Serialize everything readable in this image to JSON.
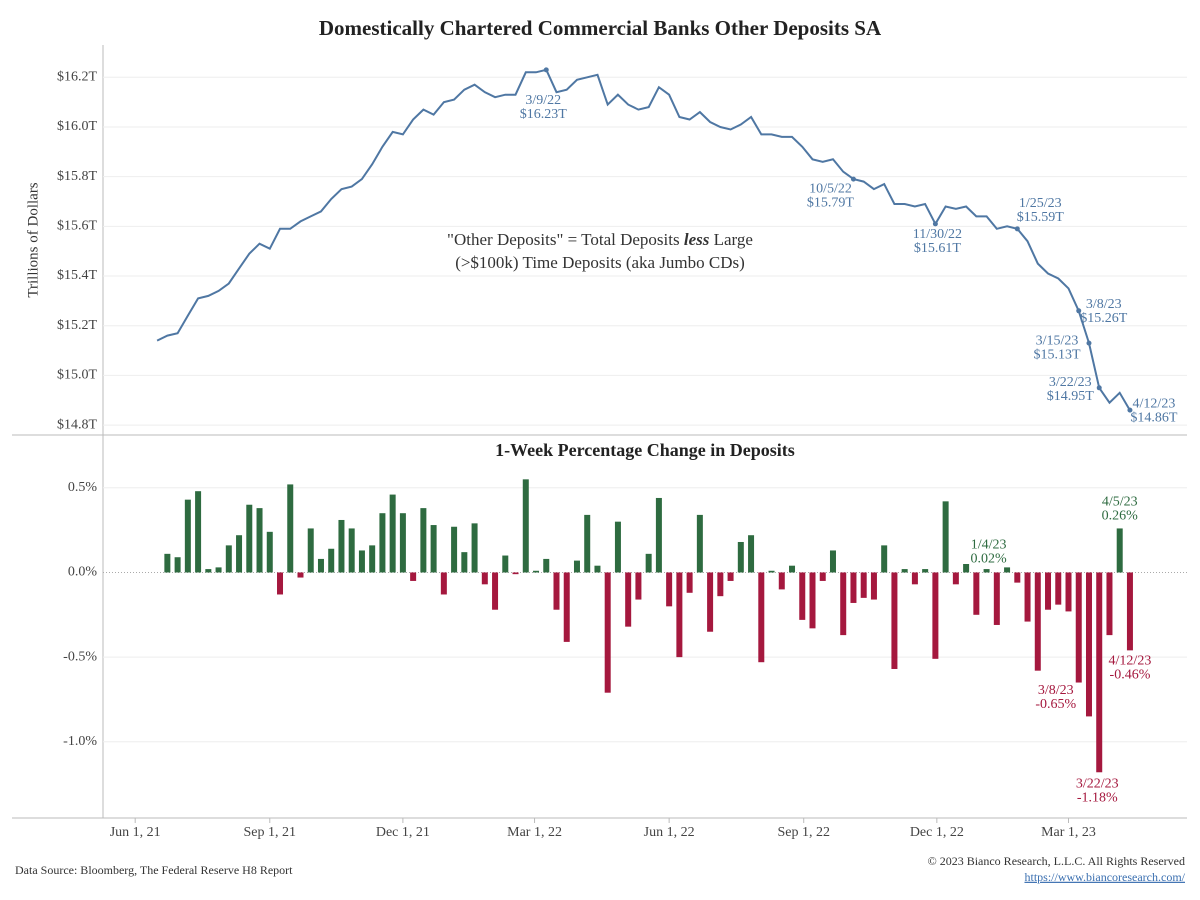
{
  "chart_data": [
    {
      "type": "line",
      "title": "Domestically Chartered Commercial Banks Other Deposits SA",
      "y_label": "Trillions of Dollars",
      "note": [
        "\"Other Deposits\" = Total Deposits ",
        "less",
        " Large",
        "(>$100k) Time Deposits (aka Jumbo CDs)"
      ],
      "color": "#4f77a3",
      "x": [
        "2021-06-16",
        "2021-06-23",
        "2021-06-30",
        "2021-07-07",
        "2021-07-14",
        "2021-07-21",
        "2021-07-28",
        "2021-08-04",
        "2021-08-11",
        "2021-08-18",
        "2021-08-25",
        "2021-09-01",
        "2021-09-08",
        "2021-09-15",
        "2021-09-22",
        "2021-09-29",
        "2021-10-06",
        "2021-10-13",
        "2021-10-20",
        "2021-10-27",
        "2021-11-03",
        "2021-11-10",
        "2021-11-17",
        "2021-11-24",
        "2021-12-01",
        "2021-12-08",
        "2021-12-15",
        "2021-12-22",
        "2021-12-29",
        "2022-01-05",
        "2022-01-12",
        "2022-01-19",
        "2022-01-26",
        "2022-02-02",
        "2022-02-09",
        "2022-02-16",
        "2022-02-23",
        "2022-03-02",
        "2022-03-09",
        "2022-03-16",
        "2022-03-23",
        "2022-03-30",
        "2022-04-06",
        "2022-04-13",
        "2022-04-20",
        "2022-04-27",
        "2022-05-04",
        "2022-05-11",
        "2022-05-18",
        "2022-05-25",
        "2022-06-01",
        "2022-06-08",
        "2022-06-15",
        "2022-06-22",
        "2022-06-29",
        "2022-07-06",
        "2022-07-13",
        "2022-07-20",
        "2022-07-27",
        "2022-08-03",
        "2022-08-10",
        "2022-08-17",
        "2022-08-24",
        "2022-08-31",
        "2022-09-07",
        "2022-09-14",
        "2022-09-21",
        "2022-09-28",
        "2022-10-05",
        "2022-10-12",
        "2022-10-19",
        "2022-10-26",
        "2022-11-02",
        "2022-11-09",
        "2022-11-16",
        "2022-11-23",
        "2022-11-30",
        "2022-12-07",
        "2022-12-14",
        "2022-12-21",
        "2022-12-28",
        "2023-01-04",
        "2023-01-11",
        "2023-01-18",
        "2023-01-25",
        "2023-02-01",
        "2023-02-08",
        "2023-02-15",
        "2023-02-22",
        "2023-03-01",
        "2023-03-08",
        "2023-03-15",
        "2023-03-22",
        "2023-03-29",
        "2023-04-05",
        "2023-04-12"
      ],
      "values": [
        15.14,
        15.16,
        15.17,
        15.24,
        15.31,
        15.32,
        15.34,
        15.37,
        15.43,
        15.49,
        15.53,
        15.51,
        15.59,
        15.59,
        15.62,
        15.64,
        15.66,
        15.71,
        15.75,
        15.76,
        15.79,
        15.85,
        15.92,
        15.98,
        15.97,
        16.03,
        16.07,
        16.05,
        16.1,
        16.11,
        16.15,
        16.17,
        16.14,
        16.12,
        16.13,
        16.13,
        16.22,
        16.22,
        16.23,
        16.14,
        16.15,
        16.19,
        16.2,
        16.21,
        16.09,
        16.13,
        16.09,
        16.07,
        16.08,
        16.16,
        16.13,
        16.04,
        16.03,
        16.06,
        16.02,
        16.0,
        15.99,
        16.01,
        16.04,
        15.97,
        15.97,
        15.96,
        15.96,
        15.92,
        15.87,
        15.86,
        15.87,
        15.82,
        15.79,
        15.78,
        15.75,
        15.77,
        15.69,
        15.69,
        15.68,
        15.69,
        15.61,
        15.68,
        15.67,
        15.68,
        15.64,
        15.64,
        15.59,
        15.6,
        15.59,
        15.54,
        15.45,
        15.41,
        15.39,
        15.35,
        15.26,
        15.13,
        14.95,
        14.89,
        14.93,
        14.86
      ],
      "date_labels": [
        null,
        null,
        null,
        null,
        null,
        null,
        null,
        null,
        null,
        null,
        null,
        null,
        null,
        null,
        null,
        null,
        null,
        null,
        null,
        null,
        null,
        null,
        null,
        null,
        null,
        null,
        null,
        null,
        null,
        null,
        null,
        null,
        null,
        null,
        null,
        null,
        null,
        null,
        "3/9/22",
        null,
        null,
        null,
        null,
        null,
        null,
        null,
        null,
        null,
        null,
        null,
        null,
        null,
        null,
        null,
        null,
        null,
        null,
        null,
        null,
        null,
        null,
        null,
        null,
        null,
        null,
        null,
        null,
        null,
        "10/5/22",
        null,
        null,
        null,
        null,
        null,
        null,
        null,
        "11/30/22",
        null,
        null,
        null,
        null,
        null,
        null,
        null,
        "1/25/23",
        null,
        null,
        null,
        null,
        null,
        "3/8/23",
        "3/15/23",
        "3/22/23",
        null,
        null,
        "4/12/23"
      ],
      "value_labels": [
        null,
        null,
        null,
        null,
        null,
        null,
        null,
        null,
        null,
        null,
        null,
        null,
        null,
        null,
        null,
        null,
        null,
        null,
        null,
        null,
        null,
        null,
        null,
        null,
        null,
        null,
        null,
        null,
        null,
        null,
        null,
        null,
        null,
        null,
        null,
        null,
        null,
        null,
        "$16.23T",
        null,
        null,
        null,
        null,
        null,
        null,
        null,
        null,
        null,
        null,
        null,
        null,
        null,
        null,
        null,
        null,
        null,
        null,
        null,
        null,
        null,
        null,
        null,
        null,
        null,
        null,
        null,
        null,
        null,
        "$15.79T",
        null,
        null,
        null,
        null,
        null,
        null,
        null,
        "$15.61T",
        null,
        null,
        null,
        null,
        null,
        null,
        null,
        "$15.59T",
        null,
        null,
        null,
        null,
        null,
        "$15.26T",
        "$15.13T",
        "$14.95T",
        null,
        null,
        "$14.86T"
      ],
      "xlim": [
        "2021-05-10",
        "2023-05-21"
      ],
      "ylim": [
        14.76,
        16.33
      ],
      "yticks": [
        {
          "value": 14.8,
          "label": "$14.8T"
        },
        {
          "value": 15.0,
          "label": "$15.0T"
        },
        {
          "value": 15.2,
          "label": "$15.2T"
        },
        {
          "value": 15.4,
          "label": "$15.4T"
        },
        {
          "value": 15.6,
          "label": "$15.6T"
        },
        {
          "value": 15.8,
          "label": "$15.8T"
        },
        {
          "value": 16.0,
          "label": "$16.0T"
        },
        {
          "value": 16.2,
          "label": "$16.2T"
        }
      ],
      "grid": true
    },
    {
      "type": "bar",
      "title": "1-Week Percentage Change in Deposits",
      "positive_color": "#2e6b40",
      "negative_color": "#a5183e",
      "x": [
        "2021-06-16",
        "2021-06-23",
        "2021-06-30",
        "2021-07-07",
        "2021-07-14",
        "2021-07-21",
        "2021-07-28",
        "2021-08-04",
        "2021-08-11",
        "2021-08-18",
        "2021-08-25",
        "2021-09-01",
        "2021-09-08",
        "2021-09-15",
        "2021-09-22",
        "2021-09-29",
        "2021-10-06",
        "2021-10-13",
        "2021-10-20",
        "2021-10-27",
        "2021-11-03",
        "2021-11-10",
        "2021-11-17",
        "2021-11-24",
        "2021-12-01",
        "2021-12-08",
        "2021-12-15",
        "2021-12-22",
        "2021-12-29",
        "2022-01-05",
        "2022-01-12",
        "2022-01-19",
        "2022-01-26",
        "2022-02-02",
        "2022-02-09",
        "2022-02-16",
        "2022-02-23",
        "2022-03-02",
        "2022-03-09",
        "2022-03-16",
        "2022-03-23",
        "2022-03-30",
        "2022-04-06",
        "2022-04-13",
        "2022-04-20",
        "2022-04-27",
        "2022-05-04",
        "2022-05-11",
        "2022-05-18",
        "2022-05-25",
        "2022-06-01",
        "2022-06-08",
        "2022-06-15",
        "2022-06-22",
        "2022-06-29",
        "2022-07-06",
        "2022-07-13",
        "2022-07-20",
        "2022-07-27",
        "2022-08-03",
        "2022-08-10",
        "2022-08-17",
        "2022-08-24",
        "2022-08-31",
        "2022-09-07",
        "2022-09-14",
        "2022-09-21",
        "2022-09-28",
        "2022-10-05",
        "2022-10-12",
        "2022-10-19",
        "2022-10-26",
        "2022-11-02",
        "2022-11-09",
        "2022-11-16",
        "2022-11-23",
        "2022-11-30",
        "2022-12-07",
        "2022-12-14",
        "2022-12-21",
        "2022-12-28",
        "2023-01-04",
        "2023-01-11",
        "2023-01-18",
        "2023-01-25",
        "2023-02-01",
        "2023-02-08",
        "2023-02-15",
        "2023-02-22",
        "2023-03-01",
        "2023-03-08",
        "2023-03-15",
        "2023-03-22",
        "2023-03-29",
        "2023-04-05",
        "2023-04-12"
      ],
      "values": [
        null,
        0.11,
        0.09,
        0.43,
        0.48,
        0.02,
        0.03,
        0.16,
        0.22,
        0.4,
        0.38,
        0.24,
        -0.13,
        0.52,
        -0.03,
        0.26,
        0.08,
        0.14,
        0.31,
        0.26,
        0.13,
        0.16,
        0.35,
        0.46,
        0.35,
        -0.05,
        0.38,
        0.28,
        -0.13,
        0.27,
        0.12,
        0.29,
        -0.07,
        -0.22,
        0.1,
        -0.01,
        0.55,
        0.01,
        0.08,
        -0.22,
        -0.41,
        0.07,
        0.34,
        0.04,
        -0.71,
        0.3,
        -0.32,
        -0.16,
        0.11,
        0.44,
        -0.2,
        -0.5,
        -0.12,
        0.34,
        -0.35,
        -0.14,
        -0.05,
        0.18,
        0.22,
        -0.53,
        0.01,
        -0.1,
        0.04,
        -0.28,
        -0.33,
        -0.05,
        0.13,
        -0.37,
        -0.18,
        -0.15,
        -0.16,
        0.16,
        -0.57,
        0.02,
        -0.07,
        0.02,
        -0.51,
        0.42,
        -0.07,
        0.05,
        -0.25,
        0.02,
        -0.31,
        0.03,
        -0.06,
        -0.29,
        -0.58,
        -0.22,
        -0.19,
        -0.23,
        -0.65,
        -0.85,
        -1.18,
        -0.37,
        0.26,
        -0.46
      ],
      "date_labels": [
        null,
        null,
        null,
        null,
        null,
        null,
        null,
        null,
        null,
        null,
        null,
        null,
        null,
        null,
        null,
        null,
        null,
        null,
        null,
        null,
        null,
        null,
        null,
        null,
        null,
        null,
        null,
        null,
        null,
        null,
        null,
        null,
        null,
        null,
        null,
        null,
        null,
        null,
        null,
        null,
        null,
        null,
        null,
        null,
        null,
        null,
        null,
        null,
        null,
        null,
        null,
        null,
        null,
        null,
        null,
        null,
        null,
        null,
        null,
        null,
        null,
        null,
        null,
        null,
        null,
        null,
        null,
        null,
        null,
        null,
        null,
        null,
        null,
        null,
        null,
        null,
        null,
        null,
        null,
        null,
        null,
        "1/4/23",
        null,
        null,
        null,
        null,
        null,
        null,
        null,
        null,
        "3/8/23",
        null,
        "3/22/23",
        null,
        "4/5/23",
        "4/12/23"
      ],
      "value_labels": [
        null,
        null,
        null,
        null,
        null,
        null,
        null,
        null,
        null,
        null,
        null,
        null,
        null,
        null,
        null,
        null,
        null,
        null,
        null,
        null,
        null,
        null,
        null,
        null,
        null,
        null,
        null,
        null,
        null,
        null,
        null,
        null,
        null,
        null,
        null,
        null,
        null,
        null,
        null,
        null,
        null,
        null,
        null,
        null,
        null,
        null,
        null,
        null,
        null,
        null,
        null,
        null,
        null,
        null,
        null,
        null,
        null,
        null,
        null,
        null,
        null,
        null,
        null,
        null,
        null,
        null,
        null,
        null,
        null,
        null,
        null,
        null,
        null,
        null,
        null,
        null,
        null,
        null,
        null,
        null,
        null,
        "0.02%",
        null,
        null,
        null,
        null,
        null,
        null,
        null,
        null,
        "-0.65%",
        null,
        "-1.18%",
        null,
        "0.26%",
        "-0.46%"
      ],
      "xlim": [
        "2021-05-10",
        "2023-05-21"
      ],
      "xticks": [
        {
          "value": "2021-06-01",
          "label": "Jun 1, 21"
        },
        {
          "value": "2021-09-01",
          "label": "Sep 1, 21"
        },
        {
          "value": "2021-12-01",
          "label": "Dec 1, 21"
        },
        {
          "value": "2022-03-01",
          "label": "Mar 1, 22"
        },
        {
          "value": "2022-06-01",
          "label": "Jun 1, 22"
        },
        {
          "value": "2022-09-01",
          "label": "Sep 1, 22"
        },
        {
          "value": "2022-12-01",
          "label": "Dec 1, 22"
        },
        {
          "value": "2023-03-01",
          "label": "Mar 1, 23"
        }
      ],
      "ylim": [
        -1.45,
        0.8
      ],
      "yticks": [
        {
          "value": 0.5,
          "label": "0.5%"
        },
        {
          "value": 0.0,
          "label": "0.0%"
        },
        {
          "value": -0.5,
          "label": "-0.5%"
        },
        {
          "value": -1.0,
          "label": "-1.0%"
        }
      ],
      "grid": true
    }
  ],
  "footer": {
    "source": "Data Source: Bloomberg, The Federal Reserve H8 Report",
    "copyright": "© 2023 Bianco Research, L.L.C. All Rights Reserved",
    "url": "https://www.biancoresearch.com/"
  }
}
